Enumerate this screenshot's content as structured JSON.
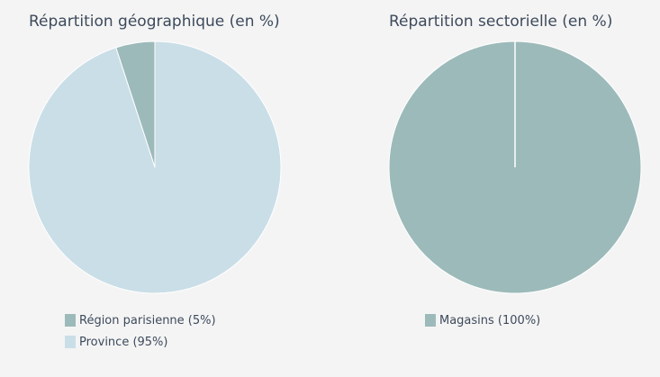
{
  "chart_data": [
    {
      "type": "pie",
      "title": "Répartition géographique (en %)",
      "categories": [
        "Région parisienne",
        "Province"
      ],
      "values": [
        5,
        95
      ],
      "legend_labels": [
        "Région parisienne (5%)",
        "Province (95%)"
      ],
      "colors": [
        "#9dbaba",
        "#cadeE7"
      ],
      "legend": "bottom-left"
    },
    {
      "type": "pie",
      "title": "Répartition sectorielle (en %)",
      "categories": [
        "Magasins"
      ],
      "values": [
        100
      ],
      "legend_labels": [
        "Magasins (100%)"
      ],
      "colors": [
        "#9dbaba"
      ],
      "legend": "bottom-left"
    }
  ]
}
